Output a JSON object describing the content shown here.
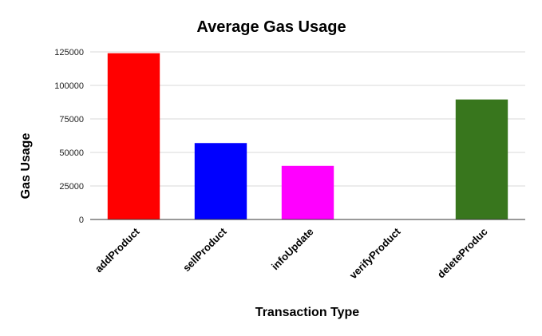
{
  "chart_data": {
    "type": "bar",
    "title": "Average Gas Usage",
    "xlabel": "Transaction Type",
    "ylabel": "Gas Usage",
    "categories": [
      "addProduct",
      "sellProduct",
      "infoUpdate",
      "verifyProduct",
      "deleteProduc"
    ],
    "values": [
      124000,
      57000,
      40000,
      0,
      89500
    ],
    "colors": [
      "#ff0000",
      "#0000ff",
      "#ff00ff",
      "#ffffff",
      "#38761d"
    ],
    "ylim": [
      0,
      125000
    ],
    "yticks": [
      "0",
      "25000",
      "50000",
      "75000",
      "100000",
      "125000"
    ],
    "grid": true,
    "legend": "none"
  }
}
